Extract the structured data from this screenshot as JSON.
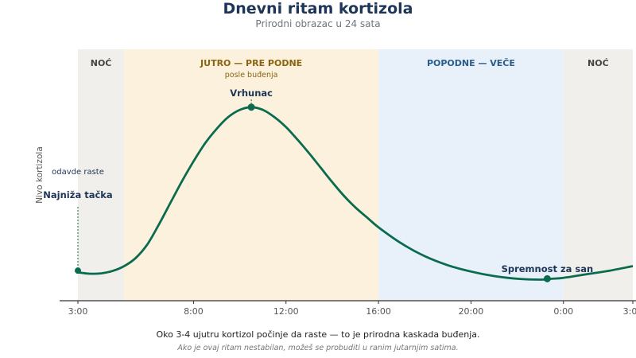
{
  "title": "Dnevni ritam kortizola",
  "subtitle": "Prirodni obrazac u 24 sata",
  "caption": "Oko 3-4 ujutru kortizol počinje da raste — to je prirodna kaskada buđenja.",
  "note": "Ako je ovaj ritam nestabilan, možeš se probuditi u ranim jutarnjim satima.",
  "colors": {
    "line": "#0b6b4f",
    "night_band": "#f1efeb",
    "morning_band": "#fbf1dc",
    "afternoon_band": "#e8f0f9",
    "title": "#1d3557",
    "morning_label": "#8a6410",
    "afternoon_label": "#2a5d8a",
    "night_label": "#444444"
  },
  "chart_data": {
    "type": "line",
    "xlabel": "",
    "ylabel": "Nivo kortizola",
    "x_unit": "hour of day (axis starts 3:00, wraps past midnight)",
    "xlim": [
      3,
      27
    ],
    "ylim": [
      0,
      100
    ],
    "x_ticks": [
      {
        "x": 3,
        "label": "3:00"
      },
      {
        "x": 8,
        "label": "8:00"
      },
      {
        "x": 12,
        "label": "12:00"
      },
      {
        "x": 16,
        "label": "16:00"
      },
      {
        "x": 20,
        "label": "20:00"
      },
      {
        "x": 24,
        "label": "0:00"
      },
      {
        "x": 27,
        "label": "3:00"
      }
    ],
    "bands": [
      {
        "from": 3,
        "to": 5,
        "label": "NOĆ",
        "sublabel": "",
        "kind": "night"
      },
      {
        "from": 5,
        "to": 16,
        "label": "JUTRO — PRE PODNE",
        "sublabel": "posle buđenja",
        "kind": "morning"
      },
      {
        "from": 16,
        "to": 24,
        "label": "POPODNE — VEČE",
        "sublabel": "",
        "kind": "afternoon"
      },
      {
        "from": 24,
        "to": 27,
        "label": "NOĆ",
        "sublabel": "",
        "kind": "night"
      }
    ],
    "series": [
      {
        "x": [
          3,
          3.5,
          4,
          4.5,
          5,
          5.5,
          6,
          6.5,
          7,
          7.5,
          8,
          8.5,
          9,
          9.5,
          10,
          10.5,
          11,
          11.5,
          12,
          12.5,
          13,
          13.5,
          14,
          14.5,
          15,
          15.5,
          16,
          17,
          18,
          19,
          20,
          21,
          22,
          23,
          23.5,
          24,
          25,
          26,
          27
        ],
        "y": [
          9.5,
          8.8,
          9,
          10.3,
          13,
          17.5,
          25,
          36,
          48,
          60,
          71,
          81,
          89,
          95.5,
          99.5,
          101,
          99.5,
          95.5,
          90,
          83,
          75.5,
          67.5,
          59.5,
          52,
          45.5,
          40,
          34.5,
          25.5,
          18.5,
          13.5,
          10,
          7.5,
          6,
          5.5,
          6,
          6.5,
          8.5,
          10.5,
          13
        ]
      }
    ],
    "annotations": [
      {
        "x": 3,
        "y": 10.5,
        "label": "Najniža tačka",
        "sublabel": "odavde raste"
      },
      {
        "x": 10.5,
        "y": 101,
        "label": "Vrhunac",
        "sublabel": ""
      },
      {
        "x": 23.3,
        "y": 6,
        "label": "Spremnost za san",
        "sublabel": ""
      }
    ]
  }
}
